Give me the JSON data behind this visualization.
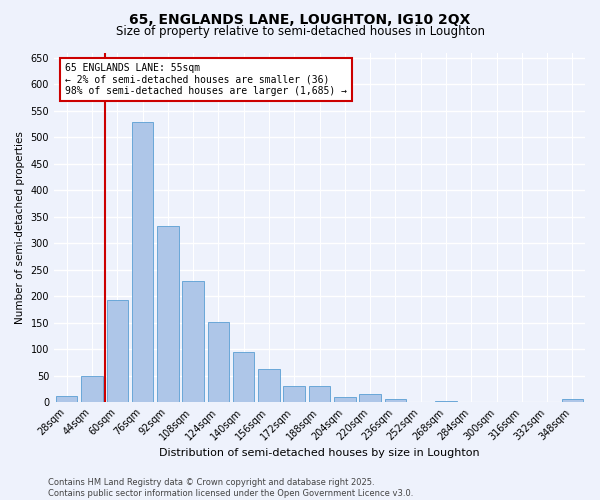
{
  "title1": "65, ENGLANDS LANE, LOUGHTON, IG10 2QX",
  "title2": "Size of property relative to semi-detached houses in Loughton",
  "xlabel": "Distribution of semi-detached houses by size in Loughton",
  "ylabel": "Number of semi-detached properties",
  "footnote1": "Contains HM Land Registry data © Crown copyright and database right 2025.",
  "footnote2": "Contains public sector information licensed under the Open Government Licence v3.0.",
  "annotation_title": "65 ENGLANDS LANE: 55sqm",
  "annotation_line1": "← 2% of semi-detached houses are smaller (36)",
  "annotation_line2": "98% of semi-detached houses are larger (1,685) →",
  "bar_labels": [
    "28sqm",
    "44sqm",
    "60sqm",
    "76sqm",
    "92sqm",
    "108sqm",
    "124sqm",
    "140sqm",
    "156sqm",
    "172sqm",
    "188sqm",
    "204sqm",
    "220sqm",
    "236sqm",
    "252sqm",
    "268sqm",
    "284sqm",
    "300sqm",
    "316sqm",
    "332sqm",
    "348sqm"
  ],
  "bar_values": [
    12,
    50,
    193,
    528,
    333,
    229,
    152,
    95,
    63,
    30,
    30,
    10,
    15,
    5,
    0,
    2,
    0,
    0,
    0,
    0,
    5
  ],
  "bar_color": "#aec6e8",
  "bar_edge_color": "#5a9fd4",
  "vline_x_index": 1.5,
  "vline_color": "#cc0000",
  "annotation_box_color": "#cc0000",
  "ylim": [
    0,
    660
  ],
  "yticks": [
    0,
    50,
    100,
    150,
    200,
    250,
    300,
    350,
    400,
    450,
    500,
    550,
    600,
    650
  ],
  "background_color": "#eef2fc",
  "grid_color": "#ffffff",
  "title_fontsize": 10,
  "subtitle_fontsize": 8.5,
  "ylabel_fontsize": 7.5,
  "xlabel_fontsize": 8,
  "tick_fontsize": 7,
  "annotation_fontsize": 7,
  "footnote_fontsize": 6
}
